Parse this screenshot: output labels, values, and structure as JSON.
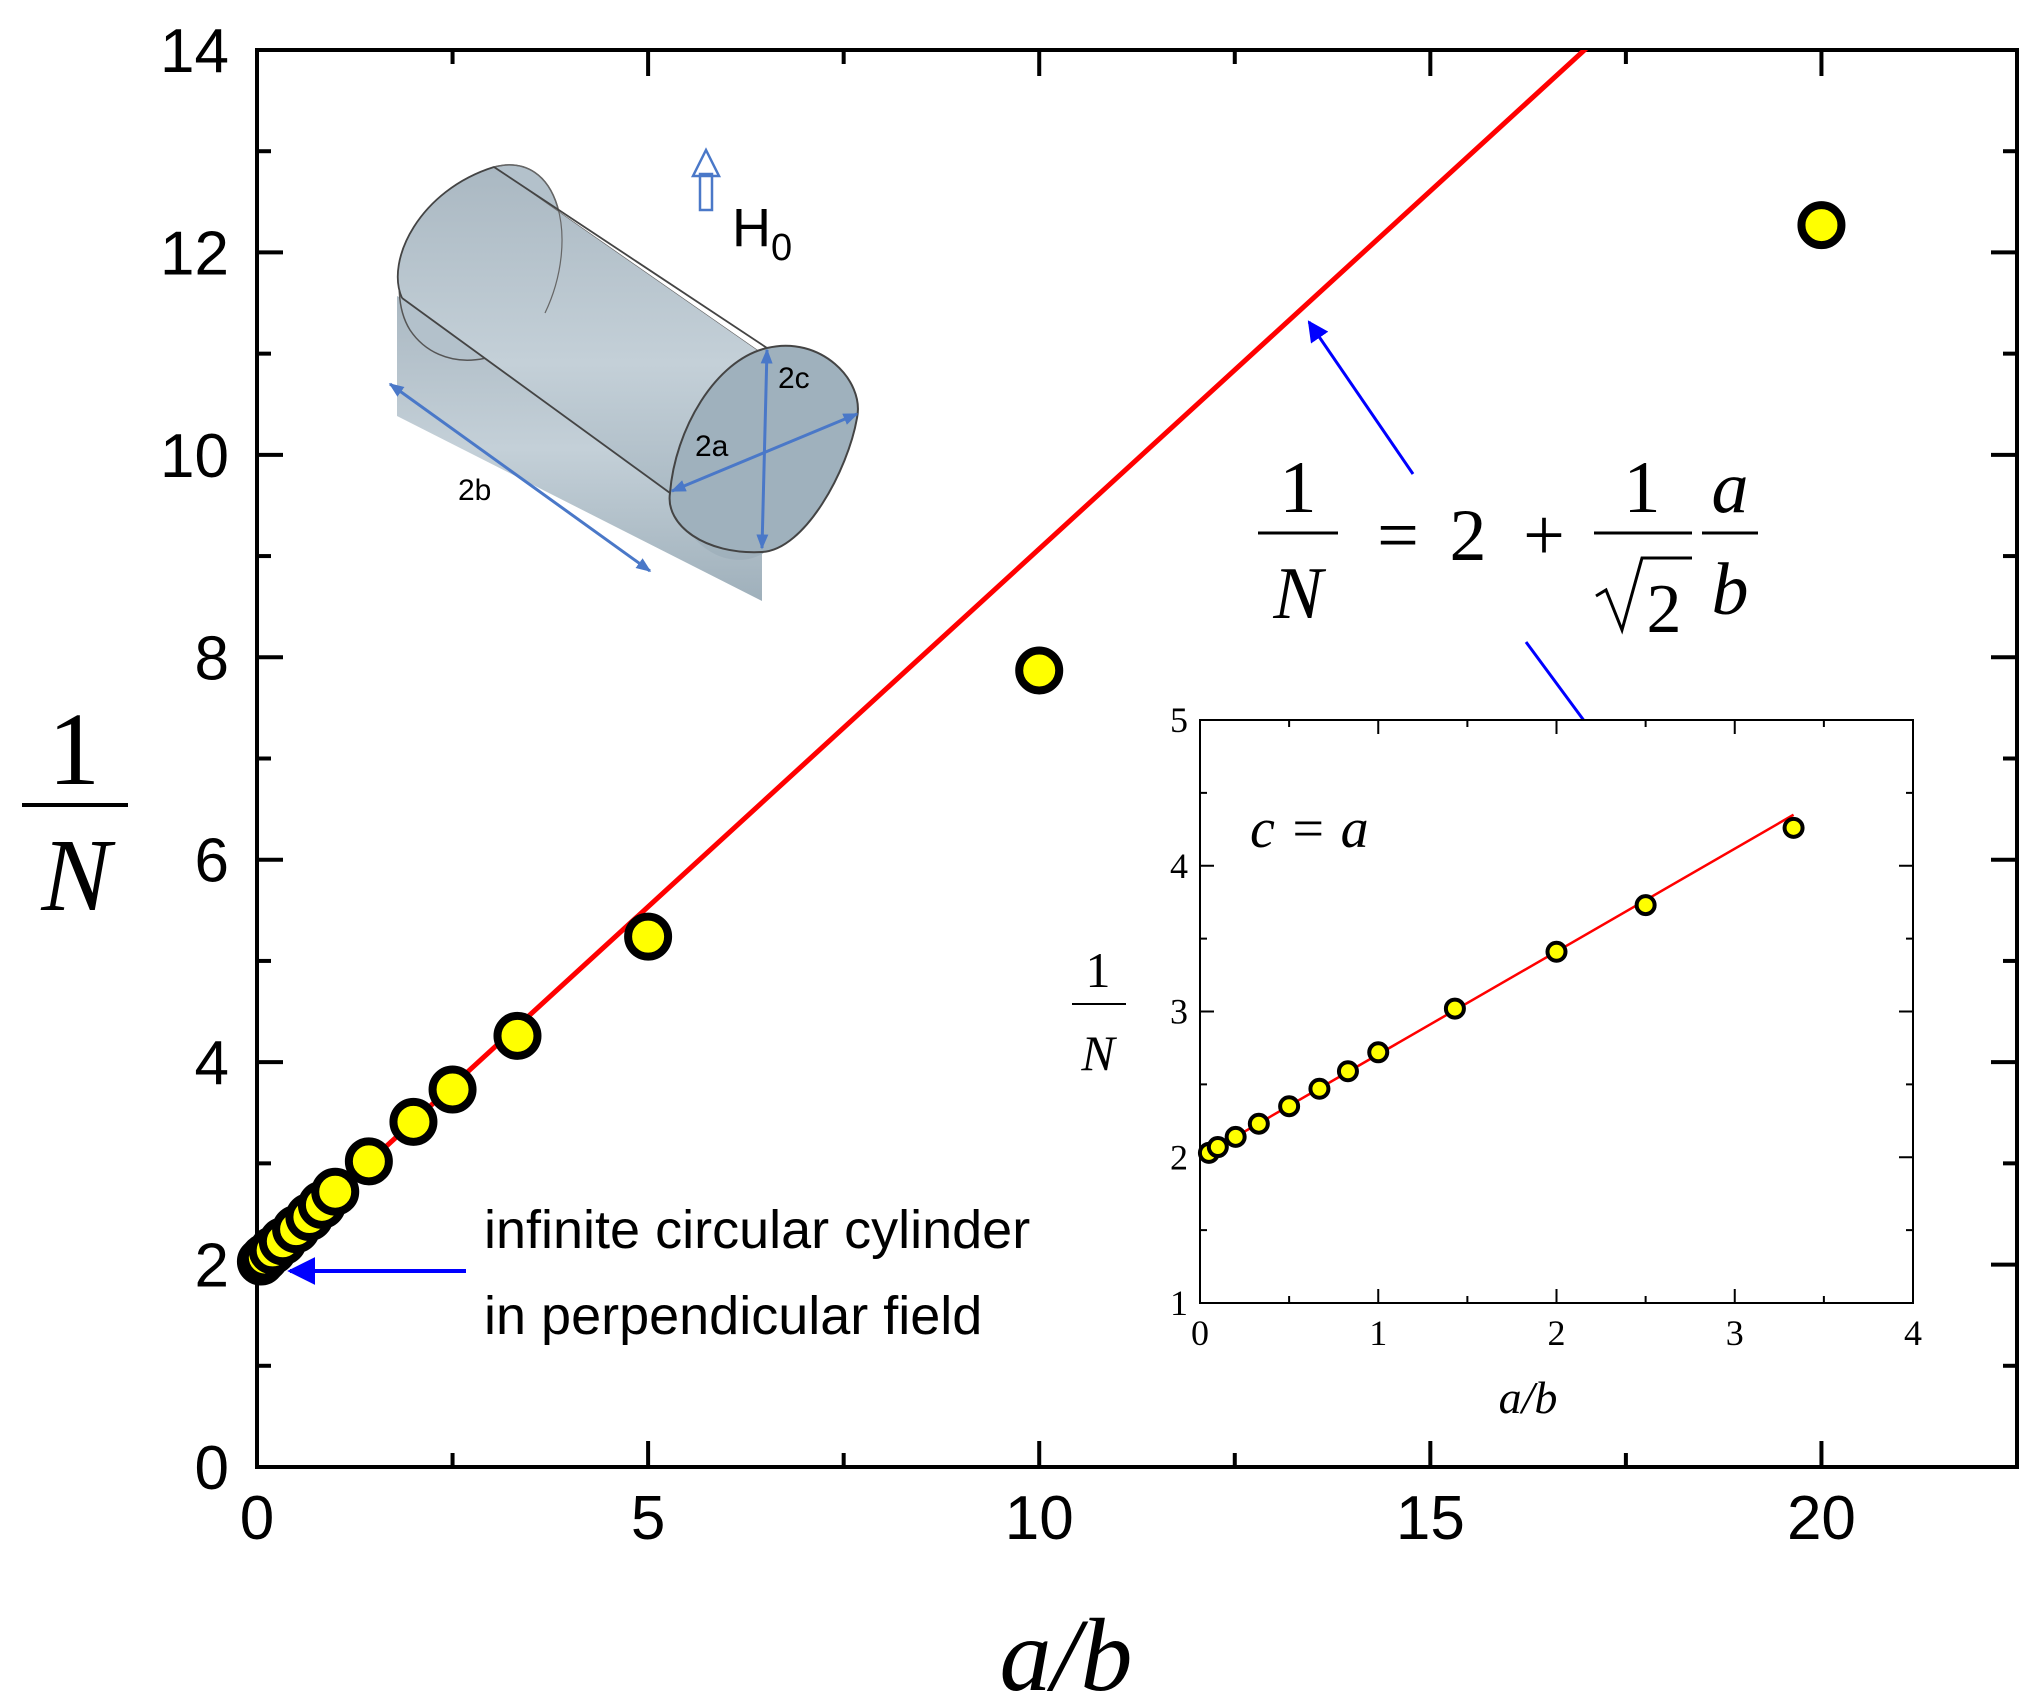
{
  "chart_data": [
    {
      "type": "scatter",
      "xlabel": "a/b",
      "ylabel_num": "1",
      "ylabel_den": "N",
      "xlim": [
        0,
        22.5
      ],
      "ylim": [
        0,
        14
      ],
      "xticks": [
        0,
        5,
        10,
        15,
        20
      ],
      "yticks": [
        0,
        2,
        4,
        6,
        8,
        10,
        12,
        14
      ],
      "series": [
        {
          "kind": "points",
          "color": "#ffff00",
          "edge": "#000000",
          "x": [
            0.05,
            0.1,
            0.2,
            0.33,
            0.5,
            0.67,
            0.83,
            1.0,
            1.43,
            2.0,
            2.5,
            3.33,
            5.0,
            10.0,
            20.0
          ],
          "y": [
            2.03,
            2.07,
            2.14,
            2.23,
            2.35,
            2.47,
            2.59,
            2.72,
            3.02,
            3.41,
            3.73,
            4.26,
            5.24,
            7.87,
            12.27
          ]
        },
        {
          "kind": "line",
          "color": "#ff0000",
          "x": [
            0,
            22.5
          ],
          "y": [
            2.0,
            17.91
          ]
        }
      ],
      "formula": {
        "lhs_num": "1",
        "lhs_den": "N",
        "equals": "=",
        "two": "2",
        "plus": "+",
        "frac_num": "1",
        "frac_den": "2",
        "var_num": "a",
        "var_den": "b"
      },
      "annotation": {
        "line1": "infinite circular cylinder",
        "line2": "in perpendicular field"
      },
      "diagram": {
        "field_label": "H",
        "field_sub": "0",
        "dim_2a": "2a",
        "dim_2b": "2b",
        "dim_2c": "2c"
      }
    },
    {
      "type": "scatter",
      "role": "inset",
      "label": "c = a",
      "xlabel": "a/b",
      "ylabel_num": "1",
      "ylabel_den": "N",
      "xlim": [
        0,
        4
      ],
      "ylim": [
        1,
        5
      ],
      "xticks": [
        0,
        1,
        2,
        3,
        4
      ],
      "yticks": [
        1,
        2,
        3,
        4,
        5
      ],
      "series": [
        {
          "kind": "points",
          "color": "#ffff00",
          "edge": "#000000",
          "x": [
            0.05,
            0.1,
            0.2,
            0.33,
            0.5,
            0.67,
            0.83,
            1.0,
            1.43,
            2.0,
            2.5,
            3.33
          ],
          "y": [
            2.03,
            2.07,
            2.14,
            2.23,
            2.35,
            2.47,
            2.59,
            2.72,
            3.02,
            3.41,
            3.73,
            4.26
          ]
        },
        {
          "kind": "line",
          "color": "#ff0000",
          "x": [
            0,
            3.33
          ],
          "y": [
            2.0,
            4.35
          ]
        }
      ]
    }
  ],
  "colors": {
    "arrow": "#0000ff",
    "cylinder": "#b8c6d0",
    "dim_arrow": "#4a78c8"
  }
}
